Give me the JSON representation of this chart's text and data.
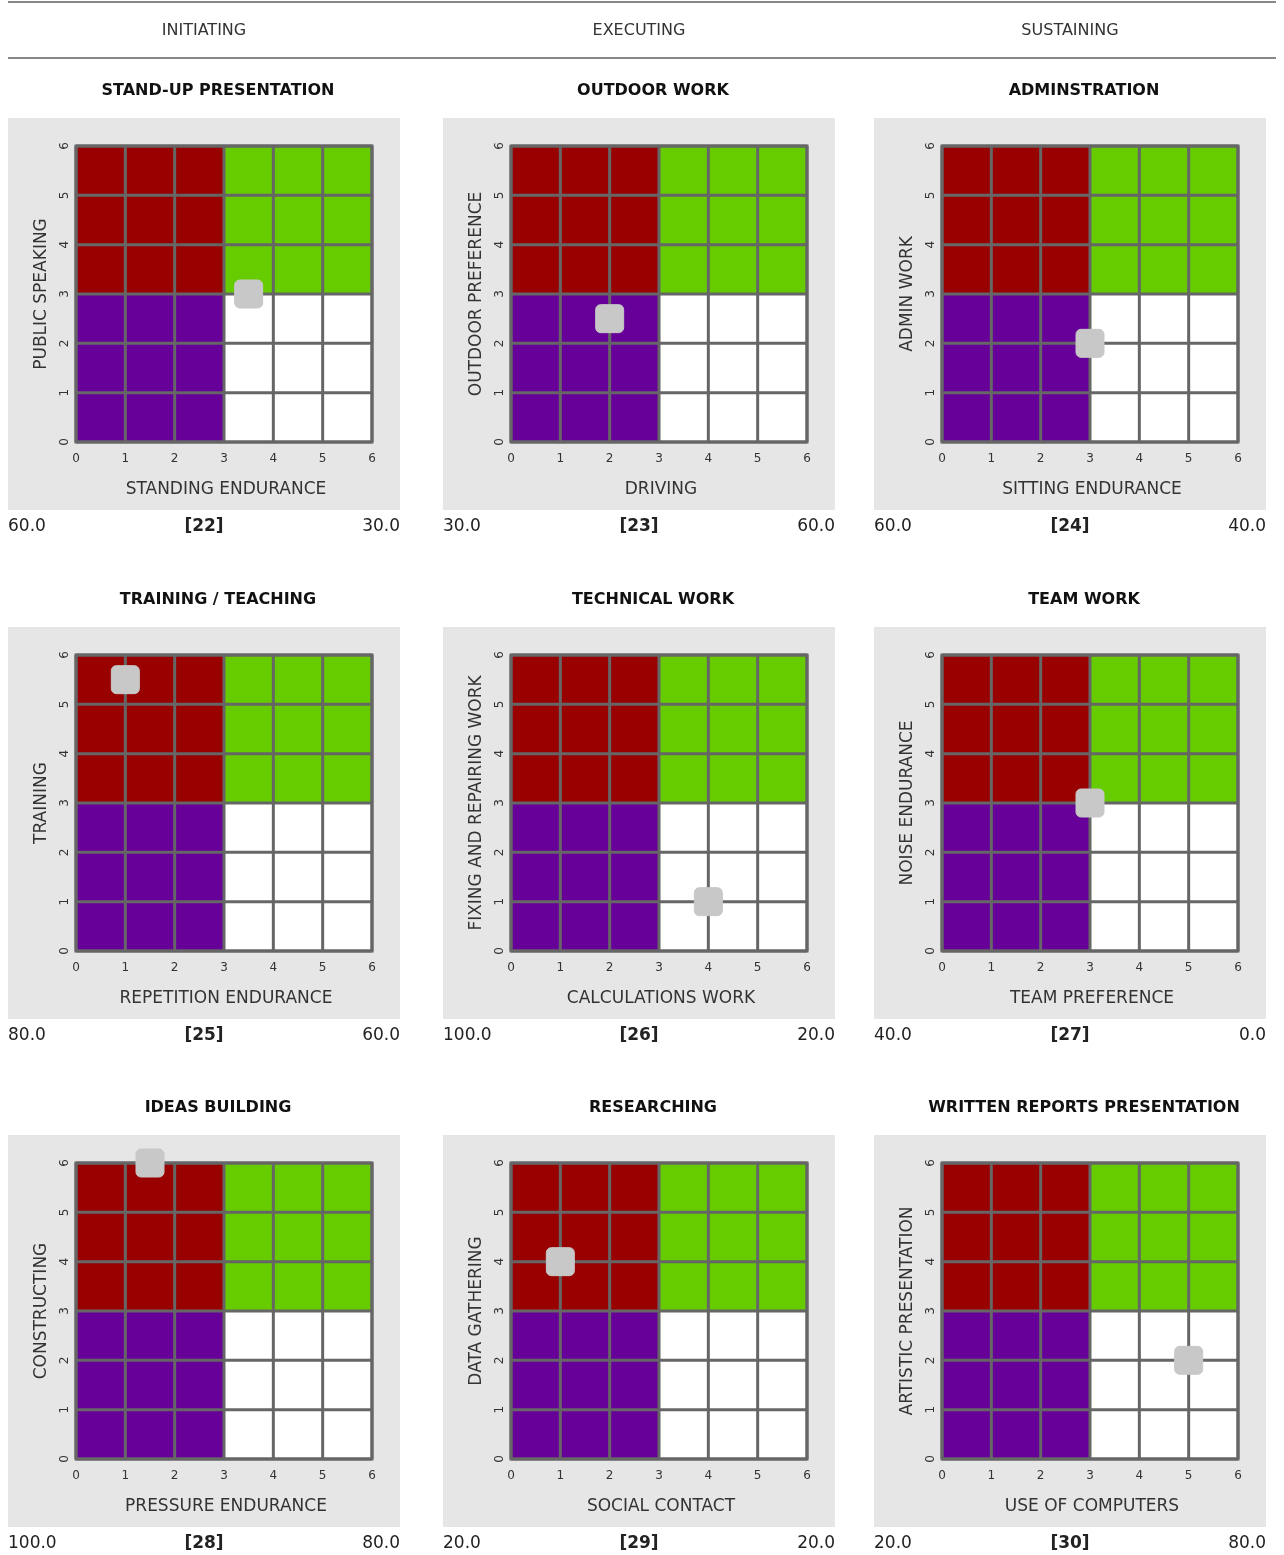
{
  "chart_data": [
    {
      "type": "scatter",
      "subtitle": "INITIATING",
      "title": "STAND-UP PRESENTATION",
      "xlabel": "STANDING ENDURANCE",
      "ylabel": "PUBLIC SPEAKING",
      "x": [
        3.5
      ],
      "values": [
        3
      ],
      "color": "#c8c8c8",
      "marker": "square",
      "xlim": [
        0,
        6
      ],
      "ylim": [
        0,
        6
      ],
      "xticks": [
        0,
        1,
        2,
        3,
        4,
        5,
        6
      ],
      "yticks": [
        0,
        1,
        2,
        3,
        4,
        5,
        6
      ],
      "grid": true,
      "annotations": [
        "60.0",
        "[22]",
        "30.0"
      ]
    },
    {
      "type": "scatter",
      "subtitle": "EXECUTING",
      "title": "OUTDOOR WORK",
      "xlabel": "DRIVING",
      "ylabel": "OUTDOOR PREFERENCE",
      "x": [
        2
      ],
      "values": [
        2.5
      ],
      "color": "#c8c8c8",
      "marker": "square",
      "xlim": [
        0,
        6
      ],
      "ylim": [
        0,
        6
      ],
      "xticks": [
        0,
        1,
        2,
        3,
        4,
        5,
        6
      ],
      "yticks": [
        0,
        1,
        2,
        3,
        4,
        5,
        6
      ],
      "grid": true,
      "annotations": [
        "30.0",
        "[23]",
        "60.0"
      ]
    },
    {
      "type": "scatter",
      "subtitle": "SUSTAINING",
      "title": "ADMINSTRATION",
      "xlabel": "SITTING ENDURANCE",
      "ylabel": "ADMIN WORK",
      "x": [
        3
      ],
      "values": [
        2
      ],
      "color": "#c8c8c8",
      "marker": "square",
      "xlim": [
        0,
        6
      ],
      "ylim": [
        0,
        6
      ],
      "xticks": [
        0,
        1,
        2,
        3,
        4,
        5,
        6
      ],
      "yticks": [
        0,
        1,
        2,
        3,
        4,
        5,
        6
      ],
      "grid": true,
      "annotations": [
        "60.0",
        "[24]",
        "40.0"
      ]
    },
    {
      "type": "scatter",
      "title": "TRAINING / TEACHING",
      "xlabel": "REPETITION ENDURANCE",
      "ylabel": "TRAINING",
      "x": [
        1
      ],
      "values": [
        5.5
      ],
      "color": "#c8c8c8",
      "marker": "square",
      "xlim": [
        0,
        6
      ],
      "ylim": [
        0,
        6
      ],
      "xticks": [
        0,
        1,
        2,
        3,
        4,
        5,
        6
      ],
      "yticks": [
        0,
        1,
        2,
        3,
        4,
        5,
        6
      ],
      "grid": true,
      "annotations": [
        "80.0",
        "[25]",
        "60.0"
      ]
    },
    {
      "type": "scatter",
      "title": "TECHNICAL WORK",
      "xlabel": "CALCULATIONS WORK",
      "ylabel": "FIXING AND REPAIRING WORK",
      "x": [
        4
      ],
      "values": [
        1
      ],
      "color": "#c8c8c8",
      "marker": "square",
      "xlim": [
        0,
        6
      ],
      "ylim": [
        0,
        6
      ],
      "xticks": [
        0,
        1,
        2,
        3,
        4,
        5,
        6
      ],
      "yticks": [
        0,
        1,
        2,
        3,
        4,
        5,
        6
      ],
      "grid": true,
      "annotations": [
        "100.0",
        "[26]",
        "20.0"
      ]
    },
    {
      "type": "scatter",
      "title": "TEAM WORK",
      "xlabel": "TEAM PREFERENCE",
      "ylabel": "NOISE ENDURANCE",
      "x": [
        3
      ],
      "values": [
        3
      ],
      "color": "#c8c8c8",
      "marker": "square",
      "xlim": [
        0,
        6
      ],
      "ylim": [
        0,
        6
      ],
      "xticks": [
        0,
        1,
        2,
        3,
        4,
        5,
        6
      ],
      "yticks": [
        0,
        1,
        2,
        3,
        4,
        5,
        6
      ],
      "grid": true,
      "annotations": [
        "40.0",
        "[27]",
        "0.0"
      ]
    },
    {
      "type": "scatter",
      "title": "IDEAS BUILDING",
      "xlabel": "PRESSURE ENDURANCE",
      "ylabel": "CONSTRUCTING",
      "x": [
        1.5
      ],
      "values": [
        6
      ],
      "color": "#c8c8c8",
      "marker": "square",
      "xlim": [
        0,
        6
      ],
      "ylim": [
        0,
        6
      ],
      "xticks": [
        0,
        1,
        2,
        3,
        4,
        5,
        6
      ],
      "yticks": [
        0,
        1,
        2,
        3,
        4,
        5,
        6
      ],
      "grid": true,
      "annotations": [
        "100.0",
        "[28]",
        "80.0"
      ]
    },
    {
      "type": "scatter",
      "title": "RESEARCHING",
      "xlabel": "SOCIAL CONTACT",
      "ylabel": "DATA GATHERING",
      "x": [
        1
      ],
      "values": [
        4
      ],
      "color": "#c8c8c8",
      "marker": "square",
      "xlim": [
        0,
        6
      ],
      "ylim": [
        0,
        6
      ],
      "xticks": [
        0,
        1,
        2,
        3,
        4,
        5,
        6
      ],
      "yticks": [
        0,
        1,
        2,
        3,
        4,
        5,
        6
      ],
      "grid": true,
      "annotations": [
        "20.0",
        "[29]",
        "20.0"
      ]
    },
    {
      "type": "scatter",
      "title": "WRITTEN REPORTS PRESENTATION",
      "xlabel": "USE OF COMPUTERS",
      "ylabel": "ARTISTIC PRESENTATION",
      "x": [
        5
      ],
      "values": [
        2
      ],
      "color": "#c8c8c8",
      "marker": "square",
      "xlim": [
        0,
        6
      ],
      "ylim": [
        0,
        6
      ],
      "xticks": [
        0,
        1,
        2,
        3,
        4,
        5,
        6
      ],
      "yticks": [
        0,
        1,
        2,
        3,
        4,
        5,
        6
      ],
      "grid": true,
      "annotations": [
        "20.0",
        "[30]",
        "80.0"
      ]
    }
  ]
}
